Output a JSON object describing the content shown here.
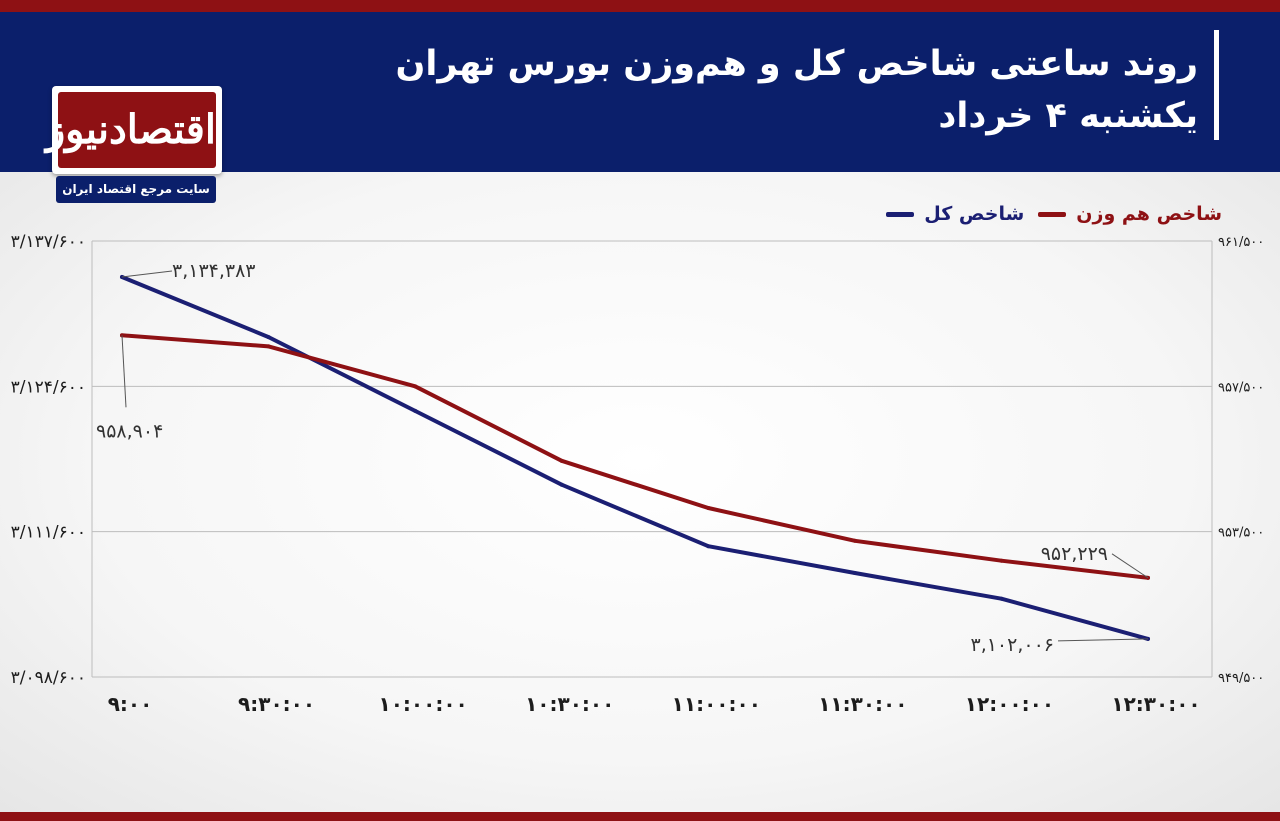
{
  "header": {
    "title_line1": "روند ساعتی شاخص کل و هم‌وزن بورس تهران",
    "title_line2": "یکشنبه ۴ خرداد"
  },
  "logo": {
    "name": "اقتصادنیوز",
    "tagline": "سایت مرجع اقتصاد ایران"
  },
  "colors": {
    "header_bg": "#0b1f6b",
    "accent_red": "#8e1114",
    "series_main": "#1b1f73",
    "series_equal": "#8e1114"
  },
  "chart_data": {
    "type": "line",
    "x": [
      "۹:۰۰",
      "۹:۳۰:۰۰",
      "۱۰:۰۰:۰۰",
      "۱۰:۳۰:۰۰",
      "۱۱:۰۰:۰۰",
      "۱۱:۳۰:۰۰",
      "۱۲:۰۰:۰۰",
      "۱۲:۳۰:۰۰"
    ],
    "series": [
      {
        "name": "شاخص کل",
        "axis": "left",
        "color": "#1b1f73",
        "values": [
          3134383,
          3129000,
          3122400,
          3115800,
          3110300,
          3107900,
          3105600,
          3102006
        ]
      },
      {
        "name": "شاخص هم وزن",
        "axis": "right",
        "color": "#8e1114",
        "values": [
          958904,
          958600,
          957500,
          955450,
          954150,
          953250,
          952700,
          952229
        ]
      }
    ],
    "y_left": {
      "ylim": [
        3098600,
        3137600
      ],
      "ticks": [
        3098600,
        3111600,
        3124600,
        3137600
      ],
      "tick_labels": [
        "۳/۰۹۸/۶۰۰",
        "۳/۱۱۱/۶۰۰",
        "۳/۱۲۴/۶۰۰",
        "۳/۱۳۷/۶۰۰"
      ]
    },
    "y_right": {
      "ylim": [
        949500,
        961500
      ],
      "ticks": [
        949500,
        953500,
        957500,
        961500
      ],
      "tick_labels": [
        "۹۴۹/۵۰۰",
        "۹۵۳/۵۰۰",
        "۹۵۷/۵۰۰",
        "۹۶۱/۵۰۰"
      ]
    },
    "annotations": [
      {
        "series": 0,
        "index": 0,
        "text": "۳,۱۳۴,۳۸۳"
      },
      {
        "series": 1,
        "index": 0,
        "text": "۹۵۸,۹۰۴"
      },
      {
        "series": 1,
        "index": 7,
        "text": "۹۵۲,۲۲۹"
      },
      {
        "series": 0,
        "index": 7,
        "text": "۳,۱۰۲,۰۰۶"
      }
    ],
    "grid": true,
    "legend": "top-right"
  }
}
